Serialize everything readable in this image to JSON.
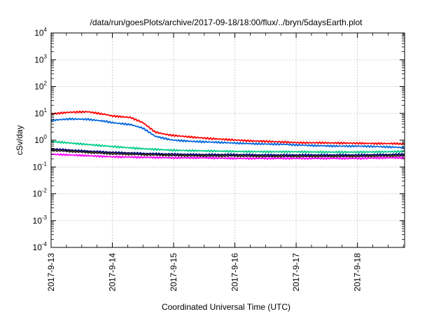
{
  "chart_data": {
    "type": "line",
    "title": "/data/run/goesPlots/archive/2017-09-18/18:00/flux/../bryn/5daysEarth.plot",
    "xlabel": "Coordinated Universal Time (UTC)",
    "ylabel": "cSv/day",
    "x_tick_labels": [
      "2017-9-13",
      "2017-9-14",
      "2017-9-15",
      "2017-9-16",
      "2017-9-17",
      "2017-9-18"
    ],
    "y_tick_labels": [
      {
        "base": "10",
        "exp": "4"
      },
      {
        "base": "10",
        "exp": "3"
      },
      {
        "base": "10",
        "exp": "2"
      },
      {
        "base": "10",
        "exp": "1"
      },
      {
        "base": "10",
        "exp": "0"
      },
      {
        "base": "10",
        "exp": "-1"
      },
      {
        "base": "10",
        "exp": "-2"
      },
      {
        "base": "10",
        "exp": "-3"
      },
      {
        "base": "10",
        "exp": "-4"
      }
    ],
    "y_scale": "log",
    "ylim": [
      0.0001,
      10000
    ],
    "xlim_days": [
      0,
      5.77
    ],
    "x_unit": "days from 2017-09-13 00:00 UTC",
    "grid": true,
    "legend": "none",
    "series": [
      {
        "color": "#ff0000",
        "x": [
          0,
          0.3,
          0.6,
          0.9,
          1.0,
          1.3,
          1.5,
          1.7,
          1.9,
          2.0,
          2.3,
          2.6,
          2.9,
          3.2,
          3.5,
          3.8,
          4.1,
          4.4,
          4.7,
          5.0,
          5.3,
          5.6,
          5.77
        ],
        "y": [
          9.5,
          11.0,
          11.5,
          9.0,
          8.0,
          7.0,
          4.5,
          2.0,
          1.6,
          1.5,
          1.3,
          1.15,
          1.05,
          0.95,
          0.9,
          0.85,
          0.8,
          0.8,
          0.78,
          0.77,
          0.75,
          0.75,
          0.72
        ]
      },
      {
        "color": "#0066dd",
        "x": [
          0,
          0.3,
          0.6,
          0.9,
          1.0,
          1.3,
          1.5,
          1.7,
          1.9,
          2.0,
          2.3,
          2.6,
          2.9,
          3.2,
          3.5,
          3.8,
          4.1,
          4.4,
          4.7,
          5.0,
          5.3,
          5.6,
          5.77
        ],
        "y": [
          5.5,
          6.2,
          6.0,
          5.0,
          4.5,
          3.8,
          2.8,
          1.4,
          1.1,
          1.0,
          0.9,
          0.85,
          0.8,
          0.75,
          0.72,
          0.7,
          0.65,
          0.62,
          0.6,
          0.6,
          0.58,
          0.55,
          0.52
        ]
      },
      {
        "color": "#00cc88",
        "x": [
          0,
          0.5,
          1.0,
          1.5,
          2.0,
          2.5,
          3.0,
          3.5,
          4.0,
          4.5,
          5.0,
          5.5,
          5.77
        ],
        "y": [
          0.9,
          0.72,
          0.58,
          0.48,
          0.42,
          0.4,
          0.38,
          0.37,
          0.37,
          0.36,
          0.36,
          0.37,
          0.38
        ]
      },
      {
        "color": "#ff9900",
        "x": [
          0,
          0.5,
          1.0,
          1.5,
          2.0,
          2.5,
          3.0,
          3.5,
          4.0,
          4.5,
          5.0,
          5.5,
          5.77
        ],
        "y": [
          0.45,
          0.38,
          0.33,
          0.3,
          0.28,
          0.27,
          0.27,
          0.26,
          0.26,
          0.26,
          0.26,
          0.27,
          0.27
        ]
      },
      {
        "color": "#000080",
        "x": [
          0,
          0.5,
          1.0,
          1.5,
          2.0,
          2.5,
          3.0,
          3.5,
          4.0,
          4.5,
          5.0,
          5.5,
          5.77
        ],
        "y": [
          0.47,
          0.4,
          0.35,
          0.32,
          0.3,
          0.29,
          0.29,
          0.28,
          0.28,
          0.28,
          0.28,
          0.29,
          0.3
        ]
      },
      {
        "color": "#222222",
        "x": [
          0,
          0.5,
          1.0,
          1.5,
          2.0,
          2.5,
          3.0,
          3.5,
          4.0,
          4.5,
          5.0,
          5.5,
          5.77
        ],
        "y": [
          0.42,
          0.36,
          0.31,
          0.29,
          0.27,
          0.26,
          0.26,
          0.25,
          0.25,
          0.25,
          0.25,
          0.26,
          0.26
        ]
      },
      {
        "color": "#ff00ff",
        "x": [
          0,
          0.5,
          1.0,
          1.5,
          2.0,
          2.5,
          3.0,
          3.5,
          4.0,
          4.5,
          5.0,
          5.5,
          5.77
        ],
        "y": [
          0.3,
          0.27,
          0.24,
          0.23,
          0.22,
          0.22,
          0.21,
          0.21,
          0.21,
          0.21,
          0.21,
          0.22,
          0.22
        ]
      }
    ]
  }
}
